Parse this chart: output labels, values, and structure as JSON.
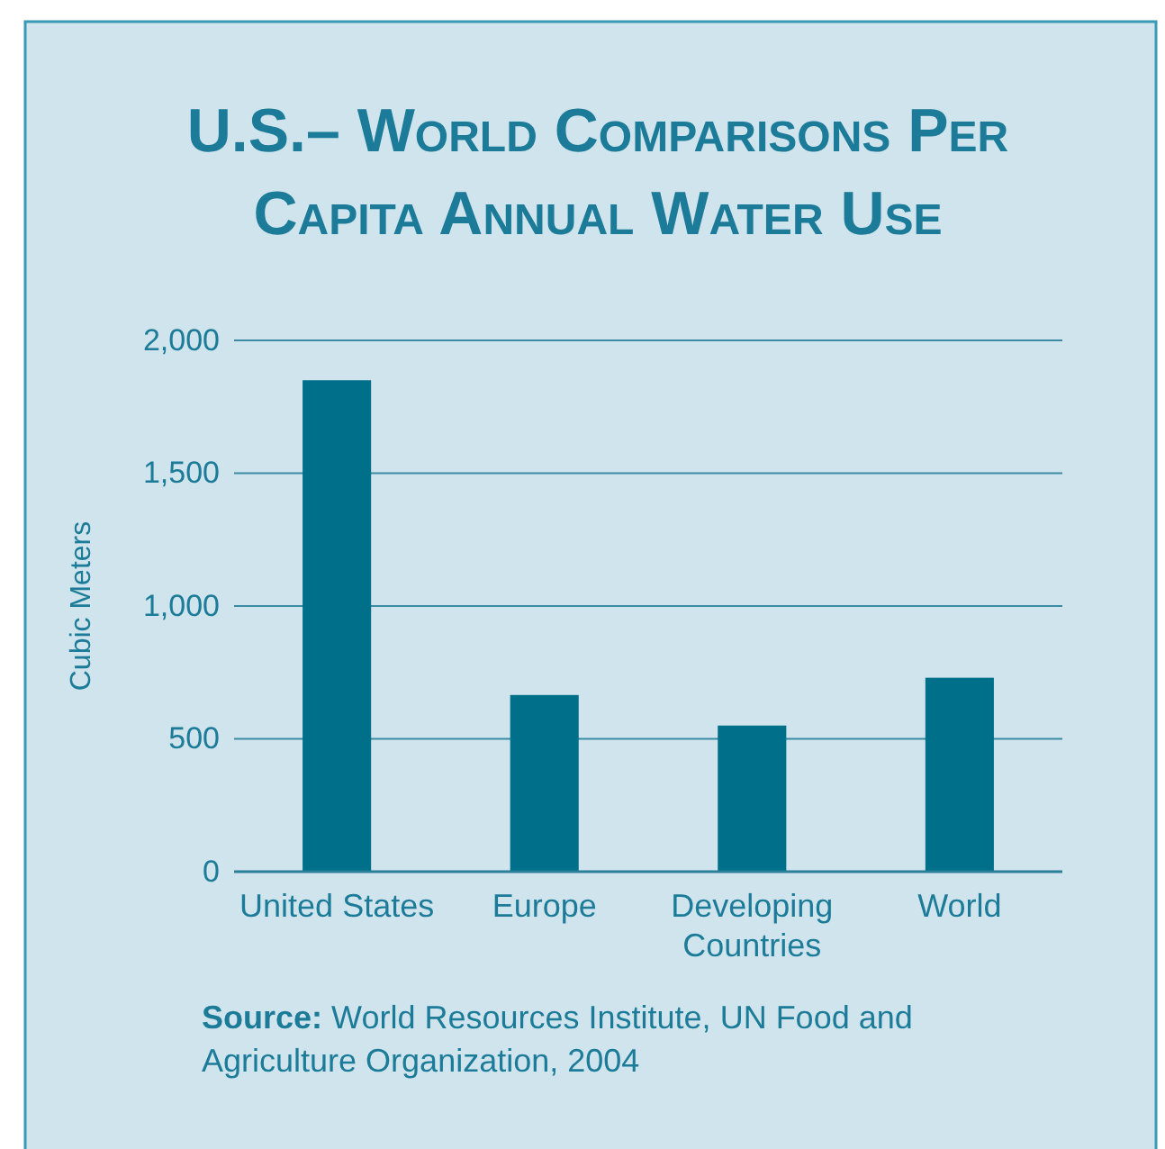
{
  "chart_data": {
    "type": "bar",
    "title": "U.S.– World Comparisons Per Capita Annual Water Use",
    "ylabel": "Cubic Meters",
    "categories": [
      "United States",
      "Europe",
      "Developing Countries",
      "World"
    ],
    "values": [
      1850,
      665,
      550,
      730
    ],
    "color": "#006f8a",
    "ylim": [
      0,
      2000
    ],
    "yticks": [
      0,
      500,
      {
        "value": 1000,
        "label": "1,000"
      },
      {
        "value": 1500,
        "label": "1,500"
      },
      {
        "value": 2000,
        "label": "2,000"
      }
    ],
    "grid": "y",
    "annotations": [
      "Source: World Resources Institute, UN Food and Agriculture Organization, 2004"
    ]
  }
}
